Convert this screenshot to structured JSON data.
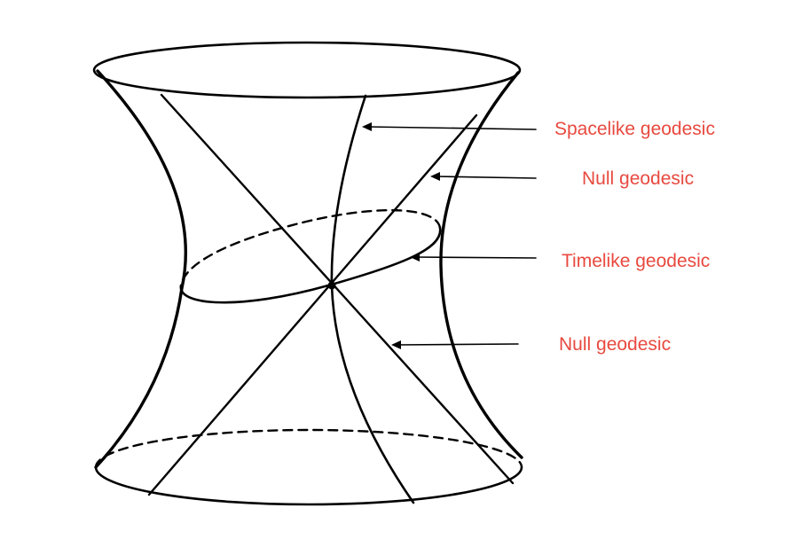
{
  "labels": {
    "spacelike": "Spacelike geodesic",
    "null_upper": "Null geodesic",
    "timelike": "Timelike geodesic",
    "null_lower": "Null geodesic"
  },
  "colors": {
    "label_text": "#e8493f",
    "line": "#000000",
    "background": "#ffffff"
  }
}
